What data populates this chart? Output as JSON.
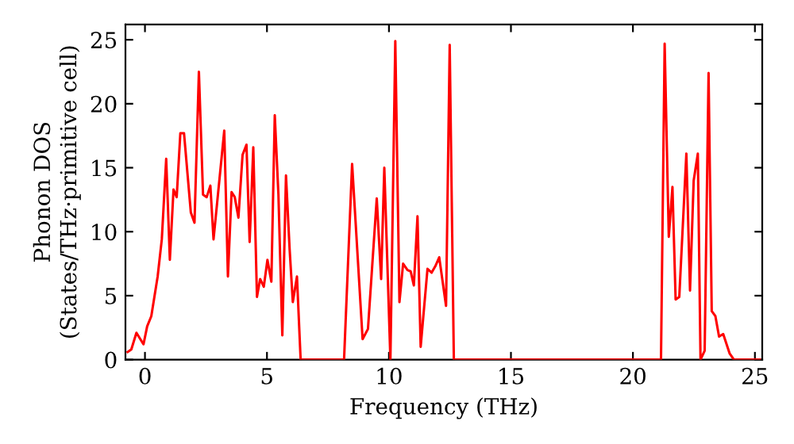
{
  "chart_data": {
    "type": "line",
    "xlabel": "Frequency (THz)",
    "ylabel": "Phonon DOS\n(States/THz·primitive cell)",
    "series": [
      {
        "color": "#ff0000",
        "x": [
          -0.71,
          -0.56,
          -0.35,
          -0.06,
          0.09,
          0.26,
          0.52,
          0.69,
          0.87,
          1.02,
          1.17,
          1.3,
          1.45,
          1.6,
          1.88,
          2.03,
          2.21,
          2.38,
          2.53,
          2.68,
          2.81,
          3.25,
          3.4,
          3.55,
          3.68,
          3.83,
          4.0,
          4.16,
          4.29,
          4.44,
          4.59,
          4.72,
          4.87,
          5.02,
          5.18,
          5.32,
          5.47,
          5.63,
          5.78,
          5.93,
          6.06,
          6.23,
          6.38,
          8.16,
          8.49,
          8.92,
          9.14,
          9.5,
          9.68,
          9.81,
          10.06,
          10.26,
          10.43,
          10.58,
          10.76,
          10.89,
          11.02,
          11.17,
          11.3,
          11.58,
          11.75,
          11.9,
          12.06,
          12.34,
          12.49,
          12.66,
          21.15,
          21.3,
          21.47,
          21.62,
          21.75,
          21.9,
          22.19,
          22.34,
          22.49,
          22.66,
          22.77,
          22.94,
          23.1,
          23.23,
          23.38,
          23.53,
          23.7,
          23.96,
          24.14,
          25.2
        ],
        "values": [
          0.6,
          0.8,
          2.1,
          1.2,
          2.6,
          3.4,
          6.5,
          9.4,
          15.7,
          7.8,
          13.3,
          12.7,
          17.7,
          17.7,
          11.5,
          10.7,
          22.5,
          12.9,
          12.7,
          13.6,
          9.4,
          17.9,
          6.5,
          13.1,
          12.7,
          11.1,
          16.0,
          16.8,
          9.2,
          16.6,
          4.9,
          6.3,
          5.7,
          7.8,
          6.1,
          19.1,
          12.9,
          1.9,
          14.4,
          8.6,
          4.5,
          6.5,
          0,
          0,
          15.3,
          1.6,
          2.4,
          12.6,
          6.3,
          15.0,
          0,
          24.9,
          4.5,
          7.5,
          7.0,
          6.9,
          5.8,
          11.2,
          1.0,
          7.1,
          6.8,
          7.3,
          8.0,
          4.2,
          24.6,
          0,
          0,
          24.7,
          9.6,
          13.5,
          4.7,
          4.9,
          16.1,
          5.4,
          14.0,
          16.1,
          0,
          0.7,
          22.4,
          3.8,
          3.4,
          1.8,
          2.0,
          0.5,
          0,
          0
        ]
      }
    ],
    "xlim": [
      -0.8,
      25.3
    ],
    "ylim": [
      0,
      26.2
    ],
    "xticks": [
      0,
      5,
      10,
      15,
      20,
      25
    ],
    "yticks": [
      0,
      5,
      10,
      15,
      20,
      25
    ],
    "grid": false,
    "legend": false,
    "marker": "none",
    "line_style": "solid"
  }
}
